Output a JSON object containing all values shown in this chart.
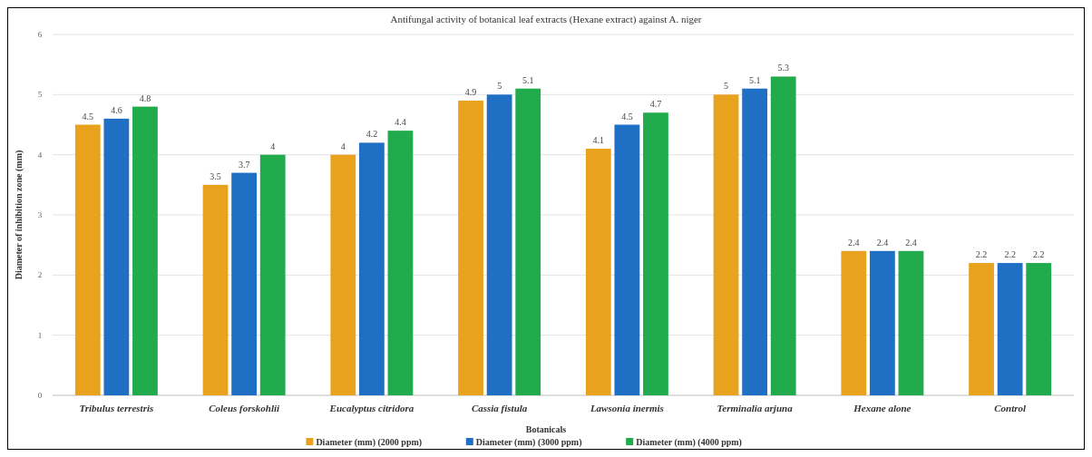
{
  "chart_data": {
    "type": "bar",
    "title": "Antifungal activity of botanical leaf extracts (Hexane extract) against A. niger",
    "xlabel": "Botanicals",
    "ylabel": "Diameter of inhibition zone (mm)",
    "categories": [
      "Tribulus terrestris",
      "Coleus forskohlii",
      "Eucalyptus citridora",
      "Cassia fistula",
      "Lawsonia inermis",
      "Terminalia arjuna",
      "Hexane alone",
      "Control"
    ],
    "series": [
      {
        "name": "Diameter (mm) (2000 ppm)",
        "color": "#e8a21e",
        "values": [
          4.5,
          3.5,
          4,
          4.9,
          4.1,
          5,
          2.4,
          2.2
        ]
      },
      {
        "name": "Diameter (mm) (3000 ppm)",
        "color": "#1f6fc5",
        "values": [
          4.6,
          3.7,
          4.2,
          5,
          4.5,
          5.1,
          2.4,
          2.2
        ]
      },
      {
        "name": "Diameter (mm) (4000 ppm)",
        "color": "#22ab4d",
        "values": [
          4.8,
          4,
          4.4,
          5.1,
          4.7,
          5.3,
          2.4,
          2.2
        ]
      }
    ],
    "ylim": [
      0,
      6
    ],
    "yticks": [
      0,
      1,
      2,
      3,
      4,
      5,
      6
    ],
    "grid": "y",
    "legend": "bottom",
    "data_labels": true
  }
}
